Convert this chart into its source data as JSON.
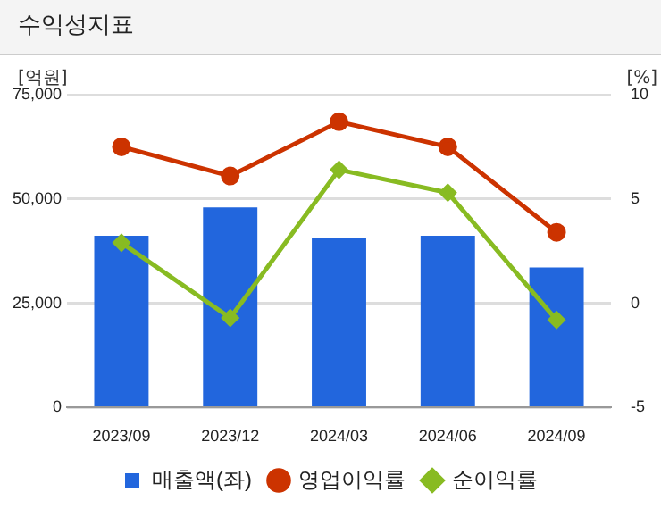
{
  "chart_data": {
    "type": "bar",
    "title": "수익성지표",
    "ylabel": "[억원]",
    "y2label": "[%]",
    "categories": [
      "2023/09",
      "2023/12",
      "2024/03",
      "2024/06",
      "2024/09"
    ],
    "series": [
      {
        "name": "매출액(좌)",
        "color": "#2266dd",
        "values": [
          41200,
          48000,
          40600,
          41200,
          33600
        ]
      },
      {
        "name": "영업이익률",
        "type": "line",
        "axis": "y2",
        "marker": "circle",
        "color": "#cc3300",
        "values": [
          7.5,
          6.1,
          8.7,
          7.5,
          3.4
        ]
      },
      {
        "name": "순이익률",
        "type": "line",
        "axis": "y2",
        "marker": "diamond",
        "color": "#88bb22",
        "values": [
          2.9,
          -0.7,
          6.4,
          5.3,
          -0.8
        ]
      }
    ],
    "ylim": [
      0,
      75000
    ],
    "yticks": [
      {
        "value": 0,
        "label": "0"
      },
      {
        "value": 25000,
        "label": "25,000"
      },
      {
        "value": 50000,
        "label": "50,000"
      },
      {
        "value": 75000,
        "label": "75,000"
      }
    ],
    "y2lim": [
      -5,
      10
    ],
    "y2ticks": [
      -5,
      0,
      5,
      10
    ],
    "grid": "y",
    "legend": "bottom"
  }
}
